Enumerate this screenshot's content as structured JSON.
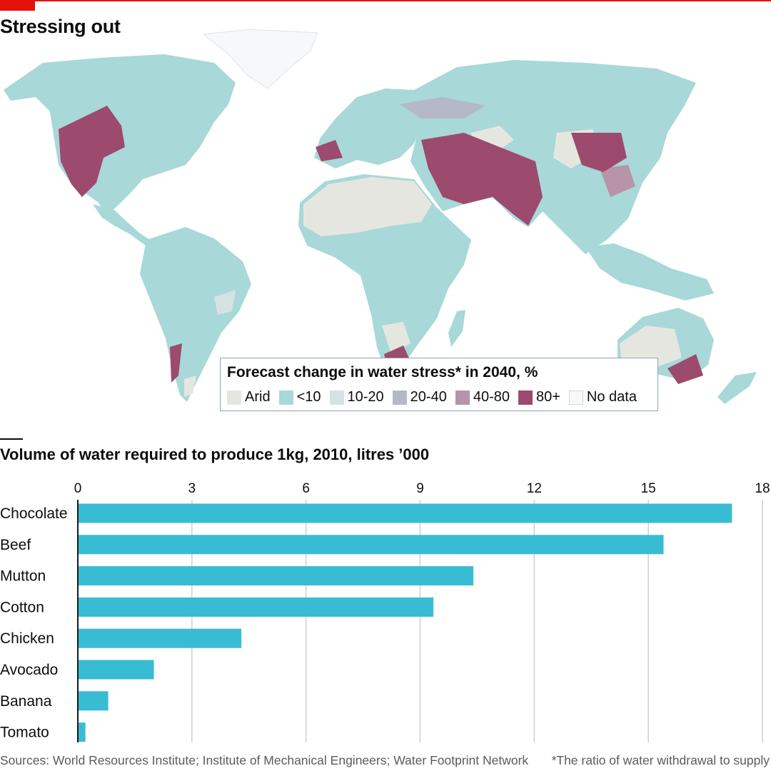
{
  "header": {
    "title": "Stressing out"
  },
  "map": {
    "legend": {
      "title": "Forecast change in water stress* in 2040, %",
      "items": [
        {
          "label": "Arid",
          "color": "#e6e6e0"
        },
        {
          "label": "<10",
          "color": "#a8d8d8"
        },
        {
          "label": "10-20",
          "color": "#d5e2e4"
        },
        {
          "label": "20-40",
          "color": "#b4b8c8"
        },
        {
          "label": "40-80",
          "color": "#b794a8"
        },
        {
          "label": "80+",
          "color": "#9c4a6e"
        },
        {
          "label": "No data",
          "color": "#f7f8fa"
        }
      ]
    }
  },
  "chart_data": {
    "type": "bar",
    "title": "Volume of water required to produce 1kg, 2010, litres ’000",
    "orientation": "horizontal",
    "categories": [
      "Chocolate",
      "Beef",
      "Mutton",
      "Cotton",
      "Chicken",
      "Avocado",
      "Banana",
      "Tomato"
    ],
    "values": [
      17.2,
      15.4,
      10.4,
      9.35,
      4.3,
      2.0,
      0.8,
      0.2
    ],
    "xlim": [
      0,
      18
    ],
    "ticks": [
      "0",
      "3",
      "6",
      "9",
      "12",
      "15",
      "18"
    ],
    "grid": true,
    "color": "#38bcd4"
  },
  "footer": {
    "sources": "Sources: World Resources Institute; Institute of Mechanical Engineers; Water Footprint Network",
    "footnote": "*The ratio of water withdrawal to supply"
  }
}
